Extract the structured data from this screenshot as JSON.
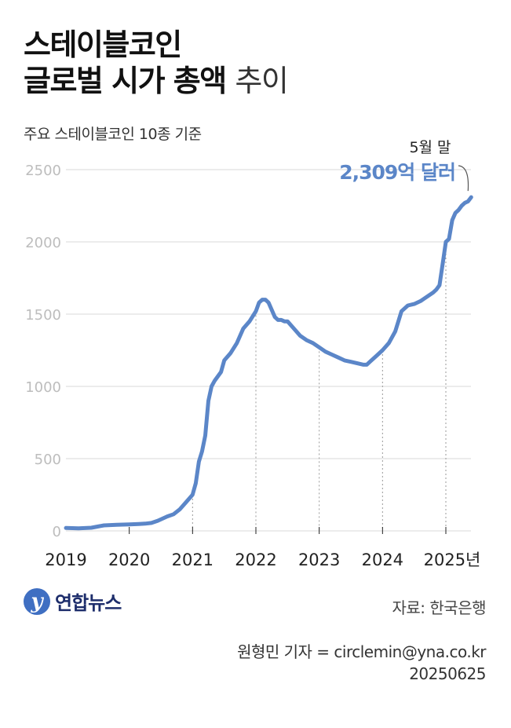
{
  "title": {
    "line1": "스테이블코인",
    "line2_bold": "글로벌 시가 총액",
    "line2_light": "추이"
  },
  "subtitle": "주요 스테이블코인 10종 기준",
  "annotation": {
    "label": "5월 말",
    "value": "2,309억 달러"
  },
  "source": "자료: 한국은행",
  "credit": {
    "author": "원형민 기자 = circlemin@yna.co.kr",
    "date": "20250625"
  },
  "logo": {
    "text": "연합뉴스"
  },
  "colors": {
    "line": "#5b86c8",
    "annotation": "#5b86c8",
    "grid": "#d9d9d9",
    "guide": "#9a9a9a"
  },
  "chart_data": {
    "type": "line",
    "title": "스테이블코인 글로벌 시가 총액 추이",
    "ylim": [
      0,
      2500
    ],
    "xlim": [
      2019.0,
      2025.42
    ],
    "grid": true,
    "y_ticks": [
      0,
      500,
      1000,
      1500,
      2000,
      2500
    ],
    "y_tick_labels": [
      "0",
      "500",
      "1000",
      "1500",
      "2000",
      "2500"
    ],
    "x_ticks": [
      2019,
      2020,
      2021,
      2022,
      2023,
      2024,
      2025
    ],
    "x_tick_labels": [
      "2019",
      "2020",
      "2021",
      "2022",
      "2023",
      "2024",
      "2025년"
    ],
    "guide_years": [
      2021,
      2022,
      2023,
      2024,
      2025
    ],
    "series": [
      {
        "x": [
          2019.0,
          2019.2,
          2019.4,
          2019.5,
          2019.6,
          2019.8,
          2020.0,
          2020.15,
          2020.25,
          2020.35,
          2020.45,
          2020.6,
          2020.7,
          2020.8,
          2020.9,
          2021.0,
          2021.05,
          2021.1,
          2021.15,
          2021.2,
          2021.25,
          2021.3,
          2021.35,
          2021.4,
          2021.45,
          2021.5,
          2021.6,
          2021.7,
          2021.8,
          2021.9,
          2022.0,
          2022.05,
          2022.1,
          2022.15,
          2022.2,
          2022.3,
          2022.35,
          2022.4,
          2022.45,
          2022.5,
          2022.6,
          2022.7,
          2022.8,
          2022.9,
          2023.0,
          2023.1,
          2023.2,
          2023.3,
          2023.4,
          2023.5,
          2023.6,
          2023.7,
          2023.75,
          2023.8,
          2023.9,
          2024.0,
          2024.1,
          2024.2,
          2024.25,
          2024.3,
          2024.4,
          2024.5,
          2024.6,
          2024.7,
          2024.8,
          2024.85,
          2024.9,
          2024.95,
          2025.0,
          2025.05,
          2025.1,
          2025.15,
          2025.2,
          2025.25,
          2025.3,
          2025.35,
          2025.4
        ],
        "values": [
          20,
          18,
          22,
          30,
          38,
          42,
          45,
          48,
          50,
          55,
          70,
          100,
          115,
          150,
          200,
          250,
          330,
          480,
          550,
          660,
          900,
          1000,
          1040,
          1070,
          1100,
          1180,
          1230,
          1300,
          1400,
          1450,
          1520,
          1580,
          1600,
          1600,
          1580,
          1480,
          1460,
          1460,
          1450,
          1450,
          1400,
          1350,
          1320,
          1300,
          1270,
          1240,
          1220,
          1200,
          1180,
          1170,
          1160,
          1150,
          1150,
          1170,
          1210,
          1250,
          1300,
          1380,
          1450,
          1520,
          1560,
          1570,
          1590,
          1620,
          1650,
          1670,
          1700,
          1850,
          2000,
          2020,
          2150,
          2200,
          2220,
          2250,
          2270,
          2280,
          2309
        ]
      }
    ]
  }
}
